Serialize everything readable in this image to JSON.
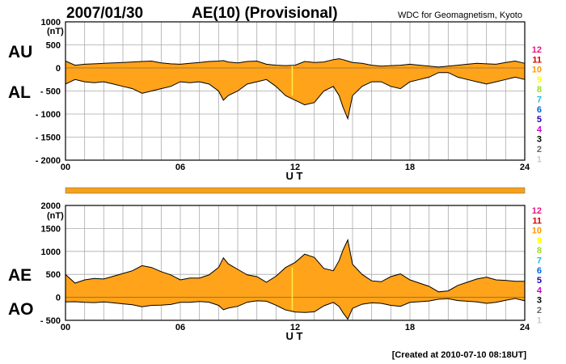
{
  "header": {
    "date": "2007/01/30",
    "title": "AE(10) (Provisional)",
    "source": "WDC for Geomagnetism, Kyoto"
  },
  "footer": {
    "created": "[Created at 2010-07-10 08:18UT]"
  },
  "stations": {
    "labels": [
      "12",
      "11",
      "10",
      "9",
      "8",
      "7",
      "6",
      "5",
      "4",
      "3",
      "2",
      "1"
    ],
    "colors": [
      "#e8177f",
      "#d40000",
      "#ff9900",
      "#ffff00",
      "#99dd22",
      "#22bbdd",
      "#0066dd",
      "#2200aa",
      "#cc00cc",
      "#000000",
      "#666666",
      "#cccccc"
    ]
  },
  "colors": {
    "fill": "#ffa31a",
    "line": "#000000",
    "grid": "#aaaaaa",
    "gap": "#ffee44",
    "bar": "#f7a11a"
  },
  "chart_data": [
    {
      "type": "area",
      "name": "AU/AL",
      "unit": "(nT)",
      "xlabel": "U T",
      "xlim": [
        0,
        24
      ],
      "xticks": [
        "00",
        "06",
        "12",
        "18",
        "24"
      ],
      "ylim": [
        -2000,
        1000
      ],
      "yticks": [
        "1000",
        "500",
        "0",
        "- 500",
        "- 1000",
        "- 1500",
        "- 2000"
      ],
      "series_labels": {
        "upper": "AU",
        "lower": "AL"
      },
      "grid": true,
      "x": [
        0,
        0.5,
        1,
        1.5,
        2,
        2.5,
        3,
        3.5,
        4,
        4.5,
        5,
        5.5,
        6,
        6.5,
        7,
        7.5,
        8,
        8.25,
        8.5,
        9,
        9.5,
        10,
        10.5,
        11,
        11.5,
        12,
        12.5,
        13,
        13.5,
        14,
        14.3,
        14.5,
        14.75,
        15,
        15.5,
        16,
        16.5,
        17,
        17.5,
        18,
        18.5,
        19,
        19.5,
        20,
        20.5,
        21,
        21.5,
        22,
        22.5,
        23,
        23.5,
        24
      ],
      "au": [
        150,
        60,
        80,
        90,
        100,
        110,
        120,
        130,
        140,
        150,
        110,
        90,
        80,
        100,
        120,
        140,
        150,
        160,
        130,
        110,
        140,
        150,
        80,
        60,
        50,
        60,
        140,
        120,
        130,
        180,
        200,
        180,
        150,
        120,
        100,
        60,
        40,
        50,
        60,
        80,
        60,
        40,
        20,
        40,
        60,
        80,
        100,
        90,
        80,
        120,
        150,
        100
      ],
      "al": [
        -350,
        -250,
        -300,
        -320,
        -300,
        -350,
        -400,
        -450,
        -550,
        -500,
        -450,
        -400,
        -300,
        -320,
        -300,
        -350,
        -500,
        -700,
        -600,
        -500,
        -350,
        -300,
        -250,
        -400,
        -600,
        -700,
        -800,
        -750,
        -500,
        -400,
        -600,
        -850,
        -1100,
        -600,
        -400,
        -300,
        -300,
        -400,
        -450,
        -300,
        -250,
        -200,
        -100,
        -100,
        -200,
        -250,
        -300,
        -350,
        -300,
        -250,
        -200,
        -250
      ]
    },
    {
      "type": "area",
      "name": "AE/AO",
      "unit": "(nT)",
      "xlabel": "U T",
      "xlim": [
        0,
        24
      ],
      "xticks": [
        "00",
        "06",
        "12",
        "18",
        "24"
      ],
      "ylim": [
        -500,
        2000
      ],
      "yticks": [
        "2000",
        "1500",
        "1000",
        "500",
        "0",
        "- 500"
      ],
      "series_labels": {
        "upper": "AE",
        "lower": "AO"
      },
      "grid": true,
      "x": [
        0,
        0.5,
        1,
        1.5,
        2,
        2.5,
        3,
        3.5,
        4,
        4.5,
        5,
        5.5,
        6,
        6.5,
        7,
        7.5,
        8,
        8.25,
        8.5,
        9,
        9.5,
        10,
        10.5,
        11,
        11.5,
        12,
        12.5,
        13,
        13.5,
        14,
        14.3,
        14.5,
        14.75,
        15,
        15.5,
        16,
        16.5,
        17,
        17.5,
        18,
        18.5,
        19,
        19.5,
        20,
        20.5,
        21,
        21.5,
        22,
        22.5,
        23,
        23.5,
        24
      ],
      "ae": [
        500,
        310,
        380,
        410,
        400,
        460,
        520,
        580,
        690,
        650,
        560,
        490,
        380,
        420,
        420,
        490,
        650,
        860,
        730,
        610,
        490,
        450,
        330,
        460,
        650,
        760,
        940,
        870,
        630,
        580,
        800,
        1030,
        1250,
        720,
        500,
        360,
        340,
        450,
        510,
        380,
        310,
        240,
        120,
        140,
        260,
        330,
        400,
        440,
        380,
        370,
        350,
        350
      ],
      "ao": [
        -100,
        -95,
        -110,
        -115,
        -100,
        -120,
        -140,
        -160,
        -205,
        -175,
        -170,
        -155,
        -110,
        -110,
        -90,
        -105,
        -175,
        -270,
        -235,
        -195,
        -105,
        -75,
        -85,
        -170,
        -275,
        -320,
        -330,
        -315,
        -185,
        -110,
        -200,
        -335,
        -475,
        -240,
        -150,
        -120,
        -130,
        -175,
        -195,
        -110,
        -95,
        -80,
        -40,
        -30,
        -70,
        -85,
        -100,
        -130,
        -110,
        -65,
        -25,
        -75
      ]
    }
  ]
}
